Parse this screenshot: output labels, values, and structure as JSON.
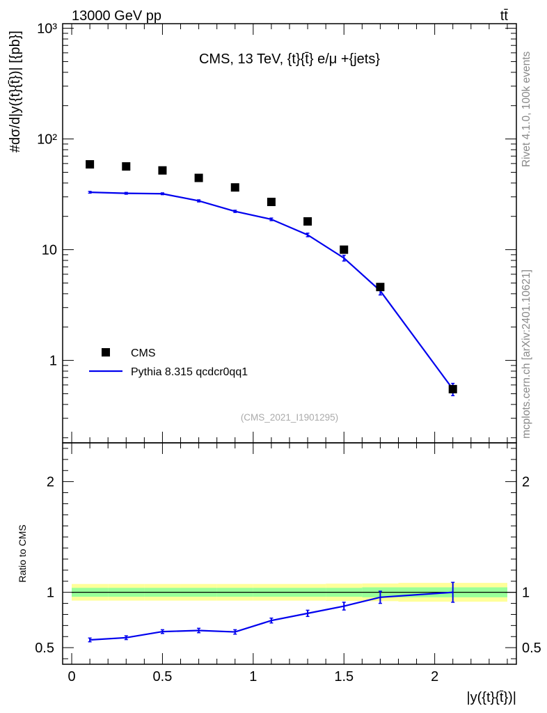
{
  "header": {
    "left": "13000 GeV pp",
    "right": "tt̄"
  },
  "side_labels": {
    "rivet": "Rivet 4.1.0,  100k events",
    "site": "mcplots.cern.ch [arXiv:2401.10621]"
  },
  "colors": {
    "data": "#000000",
    "mc": "#0000ee",
    "band_inner": "#99ff99",
    "band_outer": "#ffff99"
  },
  "chart_data": [
    {
      "type": "scatter",
      "panel": "main",
      "title": "CMS, 13 TeV, {t}{t̄} e/μ +{jets}",
      "ylabel": "#dσ/d|y({t}{t̄})| [{pb}]",
      "xlabel": "",
      "yscale": "log",
      "ylim": [
        0.18,
        1100
      ],
      "xlim": [
        -0.05,
        2.45
      ],
      "y_ticks": [
        {
          "v": 1,
          "label": "1"
        },
        {
          "v": 10,
          "label": "10"
        },
        {
          "v": 100,
          "label": "10²"
        },
        {
          "v": 1000,
          "label": "10³"
        }
      ],
      "legend_position": "lower-left",
      "watermark": "(CMS_2021_I1901295)",
      "series": [
        {
          "name": "CMS",
          "kind": "markers",
          "x": [
            0.1,
            0.3,
            0.5,
            0.7,
            0.9,
            1.1,
            1.3,
            1.5,
            1.7,
            2.1
          ],
          "y": [
            59,
            56.5,
            52,
            44.5,
            36.5,
            27,
            18,
            10,
            4.6,
            0.55
          ]
        },
        {
          "name": "Pythia 8.315 qcdcr0qq1",
          "kind": "line",
          "x": [
            0.1,
            0.3,
            0.5,
            0.7,
            0.9,
            1.1,
            1.3,
            1.5,
            1.7,
            2.1
          ],
          "y": [
            33,
            32.3,
            32,
            27.6,
            22.2,
            18.8,
            13.6,
            8.4,
            4.25,
            0.55
          ],
          "err": [
            0.6,
            0.6,
            0.6,
            0.6,
            0.5,
            0.5,
            0.5,
            0.5,
            0.35,
            0.07
          ]
        }
      ]
    },
    {
      "type": "line",
      "panel": "ratio",
      "ylabel": "Ratio to CMS",
      "xlabel": "|y({t}{t̄})|",
      "yscale": "linear",
      "ylim": [
        0.35,
        2.35
      ],
      "xlim": [
        -0.05,
        2.45
      ],
      "y_ticks": [
        {
          "v": 0.5,
          "label": "0.5"
        },
        {
          "v": 1,
          "label": "1"
        },
        {
          "v": 2,
          "label": "2"
        }
      ],
      "x_ticks": [
        {
          "v": 0,
          "label": "0"
        },
        {
          "v": 0.5,
          "label": "0.5"
        },
        {
          "v": 1,
          "label": "1"
        },
        {
          "v": 1.5,
          "label": "1.5"
        },
        {
          "v": 2,
          "label": "2"
        }
      ],
      "bands": {
        "x_edges": [
          0.0,
          0.2,
          0.4,
          0.6,
          0.8,
          1.0,
          1.2,
          1.4,
          1.6,
          1.8,
          2.4
        ],
        "inner": [
          0.04,
          0.04,
          0.04,
          0.04,
          0.04,
          0.04,
          0.04,
          0.04,
          0.045,
          0.045
        ],
        "outer": [
          0.075,
          0.075,
          0.075,
          0.075,
          0.075,
          0.075,
          0.075,
          0.078,
          0.08,
          0.085
        ]
      },
      "series": [
        {
          "name": "Pythia 8.315 qcdcr0qq1",
          "x": [
            0.1,
            0.3,
            0.5,
            0.7,
            0.9,
            1.1,
            1.3,
            1.5,
            1.7,
            2.1
          ],
          "y": [
            0.57,
            0.59,
            0.645,
            0.655,
            0.642,
            0.745,
            0.81,
            0.875,
            0.955,
            1.0
          ],
          "err": [
            0.017,
            0.017,
            0.017,
            0.02,
            0.02,
            0.022,
            0.028,
            0.035,
            0.055,
            0.09
          ]
        }
      ]
    }
  ]
}
